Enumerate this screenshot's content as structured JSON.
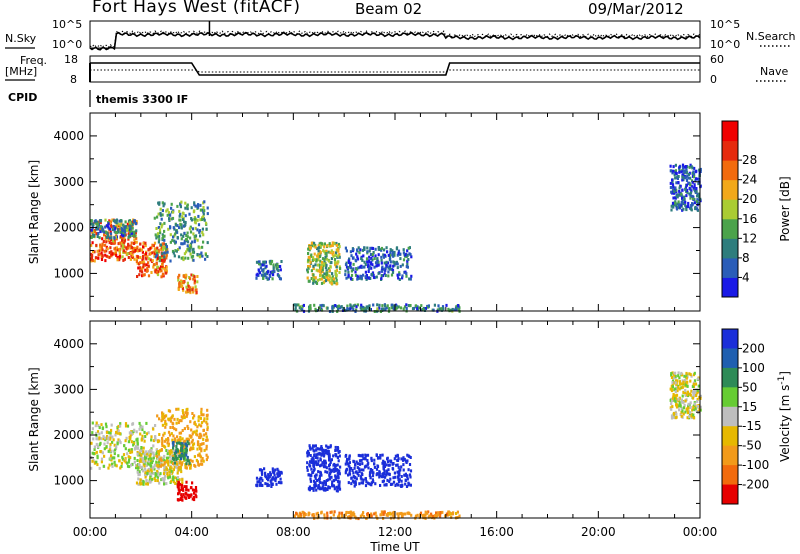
{
  "header": {
    "station": "Fort Hays West (fitACF)",
    "beam": "Beam 02",
    "date": "09/Mar/2012"
  },
  "noise_panel": {
    "left_label": "N.Sky",
    "right_label": "N.Search",
    "left_ticks": [
      "10^5",
      "10^0"
    ],
    "right_ticks": [
      "10^5",
      "10^0"
    ]
  },
  "freq_panel": {
    "left_label_line1": "Freq.",
    "left_label_line2": "[MHz]",
    "right_label": "Nave",
    "left_ticks": [
      "18",
      "8"
    ],
    "right_ticks": [
      "60",
      "0"
    ]
  },
  "cpid_panel": {
    "label": "CPID",
    "program": "themis 3300 IF"
  },
  "colors": {
    "power_scale": [
      "#1a1ae6",
      "#2a5db8",
      "#2e7d7d",
      "#4ba34b",
      "#aacc33",
      "#f2a81a",
      "#f26b0d",
      "#e62a0d",
      "#f00000"
    ],
    "velocity_scale": [
      "#1b2fd9",
      "#1f5fb0",
      "#2e8b57",
      "#66cc33",
      "#bebebe",
      "#e6b800",
      "#f29a1a",
      "#f26b0d",
      "#e60000"
    ]
  },
  "chart_data": [
    {
      "type": "heatmap",
      "title": "Power",
      "xlabel": "Time UT",
      "ylabel": "Slant Range [km]",
      "x_range_hours": [
        0,
        24
      ],
      "ylim": [
        180,
        4500
      ],
      "x_ticks": [
        "00:00",
        "04:00",
        "08:00",
        "12:00",
        "16:00",
        "20:00",
        "00:00"
      ],
      "y_ticks": [
        "1000",
        "2000",
        "3000",
        "4000"
      ],
      "colorbar": {
        "label": "Power [dB]",
        "tick_labels": [
          "4",
          "8",
          "12",
          "16",
          "20",
          "24",
          "28"
        ],
        "range": [
          0,
          30
        ]
      },
      "regions": [
        {
          "t": [
            0.0,
            1.8
          ],
          "r": [
            1300,
            2200
          ],
          "value": 22
        },
        {
          "t": [
            0.0,
            1.8
          ],
          "r": [
            1800,
            2200
          ],
          "value": 8
        },
        {
          "t": [
            1.8,
            3.0
          ],
          "r": [
            950,
            1700
          ],
          "value": 22
        },
        {
          "t": [
            2.5,
            4.6
          ],
          "r": [
            1300,
            2600
          ],
          "value": 10
        },
        {
          "t": [
            3.4,
            4.2
          ],
          "r": [
            600,
            1000
          ],
          "value": 20
        },
        {
          "t": [
            6.5,
            7.5
          ],
          "r": [
            900,
            1300
          ],
          "value": 6
        },
        {
          "t": [
            8.5,
            9.8
          ],
          "r": [
            800,
            1700
          ],
          "value": 14
        },
        {
          "t": [
            10.0,
            12.6
          ],
          "r": [
            900,
            1600
          ],
          "value": 5
        },
        {
          "t": [
            8.0,
            14.5
          ],
          "r": [
            200,
            350
          ],
          "value": 8
        },
        {
          "t": [
            22.8,
            24.0
          ],
          "r": [
            2400,
            3400
          ],
          "value": 5
        }
      ]
    },
    {
      "type": "heatmap",
      "title": "Velocity",
      "xlabel": "Time UT",
      "ylabel": "Slant Range [km]",
      "x_range_hours": [
        0,
        24
      ],
      "ylim": [
        180,
        4500
      ],
      "x_ticks": [
        "00:00",
        "04:00",
        "08:00",
        "12:00",
        "16:00",
        "20:00",
        "00:00"
      ],
      "y_ticks": [
        "1000",
        "2000",
        "3000",
        "4000"
      ],
      "colorbar": {
        "label": "Velocity [m s",
        "label_superscript": "-1",
        "label_suffix": "]",
        "tick_labels": [
          "200",
          "100",
          "50",
          "15",
          "-15",
          "-50",
          "-100",
          "-200"
        ],
        "range": [
          -250,
          250
        ]
      },
      "regions": [
        {
          "t": [
            0.0,
            2.6
          ],
          "r": [
            1300,
            2300
          ],
          "value": 0
        },
        {
          "t": [
            1.8,
            3.6
          ],
          "r": [
            950,
            1700
          ],
          "value": 0
        },
        {
          "t": [
            2.6,
            4.6
          ],
          "r": [
            1300,
            2600
          ],
          "value": -40
        },
        {
          "t": [
            3.2,
            3.9
          ],
          "r": [
            1400,
            1900
          ],
          "value": 60
        },
        {
          "t": [
            3.4,
            4.2
          ],
          "r": [
            600,
            1000
          ],
          "value": -230
        },
        {
          "t": [
            6.5,
            7.5
          ],
          "r": [
            900,
            1300
          ],
          "value": 220
        },
        {
          "t": [
            8.5,
            9.8
          ],
          "r": [
            800,
            1800
          ],
          "value": 180
        },
        {
          "t": [
            10.0,
            12.6
          ],
          "r": [
            900,
            1600
          ],
          "value": 200
        },
        {
          "t": [
            8.0,
            14.5
          ],
          "r": [
            200,
            350
          ],
          "value": -60
        },
        {
          "t": [
            22.8,
            24.0
          ],
          "r": [
            2400,
            3400
          ],
          "value": 0
        }
      ]
    }
  ]
}
